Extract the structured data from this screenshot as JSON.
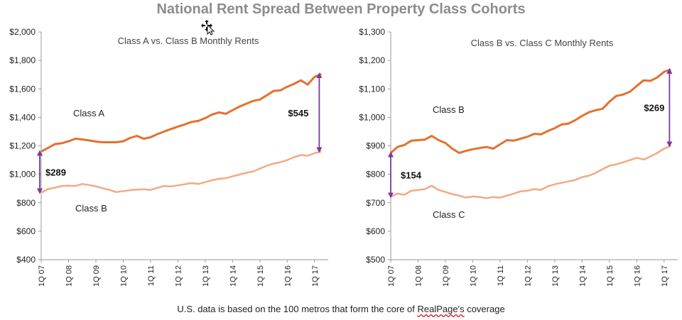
{
  "title": "National Rent Spread Between Property Class Cohorts",
  "footer": {
    "prefix": "U.S. data is based on the 100 metros that form the core of ",
    "brand": "RealPage's",
    "suffix": " coverage"
  },
  "colors": {
    "dark": "#e4712e",
    "light": "#f2aa82",
    "arrow": "#7a3b9b",
    "axis": "#9a9a9a"
  },
  "chart_data": [
    {
      "type": "line",
      "title": "Class A vs. Class B Monthly Rents",
      "xlabel": "",
      "ylabel": "",
      "ylim": [
        400,
        2000
      ],
      "yticks": [
        400,
        600,
        800,
        1000,
        1200,
        1400,
        1600,
        1800,
        2000
      ],
      "ytick_labels": [
        "$400",
        "$600",
        "$800",
        "$1,000",
        "$1,200",
        "$1,400",
        "$1,600",
        "$1,800",
        "$2,000"
      ],
      "xlim": [
        0,
        42
      ],
      "xtick_labels": [
        "1Q 07",
        "1Q 08",
        "1Q 09",
        "1Q 10",
        "1Q 11",
        "1Q 12",
        "1Q 13",
        "1Q 14",
        "1Q 15",
        "1Q 16",
        "1Q 17"
      ],
      "xtick_positions": [
        0,
        4,
        8,
        12,
        16,
        20,
        24,
        28,
        32,
        36,
        40
      ],
      "grid": false,
      "series": [
        {
          "name": "Class A",
          "color": "dark",
          "values": [
            1160,
            1185,
            1212,
            1218,
            1232,
            1250,
            1245,
            1238,
            1230,
            1225,
            1225,
            1225,
            1232,
            1255,
            1270,
            1250,
            1260,
            1282,
            1300,
            1318,
            1335,
            1350,
            1368,
            1375,
            1395,
            1420,
            1435,
            1425,
            1450,
            1475,
            1495,
            1515,
            1525,
            1555,
            1585,
            1590,
            1615,
            1635,
            1660,
            1630,
            1685,
            1705
          ]
        },
        {
          "name": "Class B",
          "color": "light",
          "values": [
            871,
            896,
            906,
            918,
            920,
            918,
            932,
            925,
            915,
            902,
            890,
            875,
            882,
            888,
            892,
            895,
            890,
            905,
            918,
            915,
            922,
            930,
            938,
            932,
            945,
            958,
            968,
            972,
            985,
            998,
            1010,
            1020,
            1040,
            1060,
            1075,
            1085,
            1100,
            1120,
            1135,
            1130,
            1148,
            1160
          ]
        }
      ],
      "annotations": [
        {
          "text": "$289",
          "at": 0,
          "from": 871,
          "to": 1160,
          "side": "left"
        },
        {
          "text": "$545",
          "at": 41,
          "from": 1160,
          "to": 1705,
          "side": "right"
        }
      ]
    },
    {
      "type": "line",
      "title": "Class B vs. Class C Monthly Rents",
      "xlabel": "",
      "ylabel": "",
      "ylim": [
        500,
        1300
      ],
      "yticks": [
        500,
        600,
        700,
        800,
        900,
        1000,
        1100,
        1200,
        1300
      ],
      "ytick_labels": [
        "$500",
        "$600",
        "$700",
        "$800",
        "$900",
        "$1,000",
        "$1,100",
        "$1,200",
        "$1,300"
      ],
      "xlim": [
        0,
        42
      ],
      "xtick_labels": [
        "1Q 07",
        "1Q 08",
        "1Q 09",
        "1Q 10",
        "1Q 11",
        "1Q 12",
        "1Q 13",
        "1Q 14",
        "1Q 15",
        "1Q 16",
        "1Q 17"
      ],
      "xtick_positions": [
        0,
        4,
        8,
        12,
        16,
        20,
        24,
        28,
        32,
        36,
        40
      ],
      "grid": false,
      "series": [
        {
          "name": "Class B",
          "color": "dark",
          "values": [
            875,
            896,
            903,
            918,
            920,
            922,
            935,
            920,
            910,
            890,
            875,
            882,
            888,
            892,
            896,
            890,
            905,
            920,
            918,
            925,
            932,
            942,
            940,
            952,
            962,
            975,
            978,
            990,
            1005,
            1018,
            1025,
            1030,
            1055,
            1075,
            1080,
            1090,
            1110,
            1130,
            1128,
            1140,
            1160,
            1168
          ]
        },
        {
          "name": "Class C",
          "color": "light",
          "values": [
            721,
            732,
            728,
            742,
            745,
            748,
            760,
            745,
            738,
            730,
            725,
            718,
            722,
            720,
            716,
            720,
            718,
            725,
            732,
            740,
            742,
            748,
            745,
            758,
            765,
            770,
            775,
            780,
            790,
            795,
            805,
            818,
            830,
            835,
            842,
            850,
            858,
            852,
            862,
            875,
            890,
            900
          ]
        }
      ],
      "annotations": [
        {
          "text": "$154",
          "at": 0,
          "from": 721,
          "to": 875,
          "side": "left"
        },
        {
          "text": "$269",
          "at": 41,
          "from": 900,
          "to": 1168,
          "side": "right"
        }
      ]
    }
  ]
}
